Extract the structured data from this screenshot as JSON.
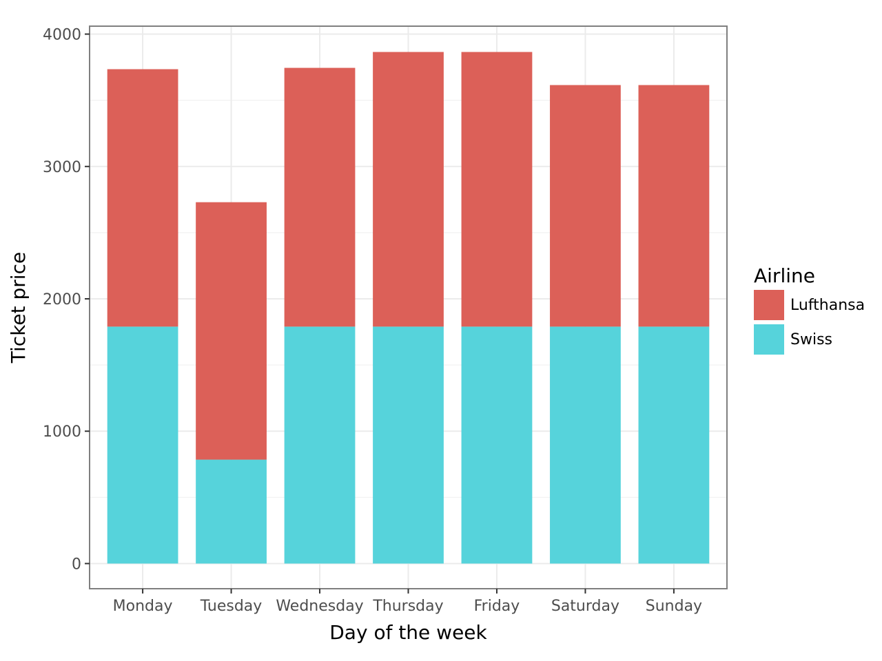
{
  "chart_data": {
    "type": "bar",
    "stacked": true,
    "title": "",
    "xlabel": "Day of the week",
    "ylabel": "Ticket price",
    "categories": [
      "Monday",
      "Tuesday",
      "Wednesday",
      "Thursday",
      "Friday",
      "Saturday",
      "Sunday"
    ],
    "series": [
      {
        "name": "Swiss",
        "color": "#56d3db",
        "values": [
          1790,
          785,
          1790,
          1790,
          1790,
          1790,
          1790
        ]
      },
      {
        "name": "Lufthansa",
        "color": "#dc6058",
        "values": [
          1945,
          1945,
          1955,
          2075,
          2075,
          1825,
          1825
        ]
      }
    ],
    "ylim": [
      -190,
      4060
    ],
    "yticks": [
      0,
      1000,
      2000,
      3000,
      4000
    ],
    "ytick_labels": [
      "0",
      "1000",
      "2000",
      "3000",
      "4000"
    ],
    "grid": true,
    "legend": {
      "title": "Airline",
      "position": "right",
      "order": [
        "Lufthansa",
        "Swiss"
      ]
    }
  }
}
